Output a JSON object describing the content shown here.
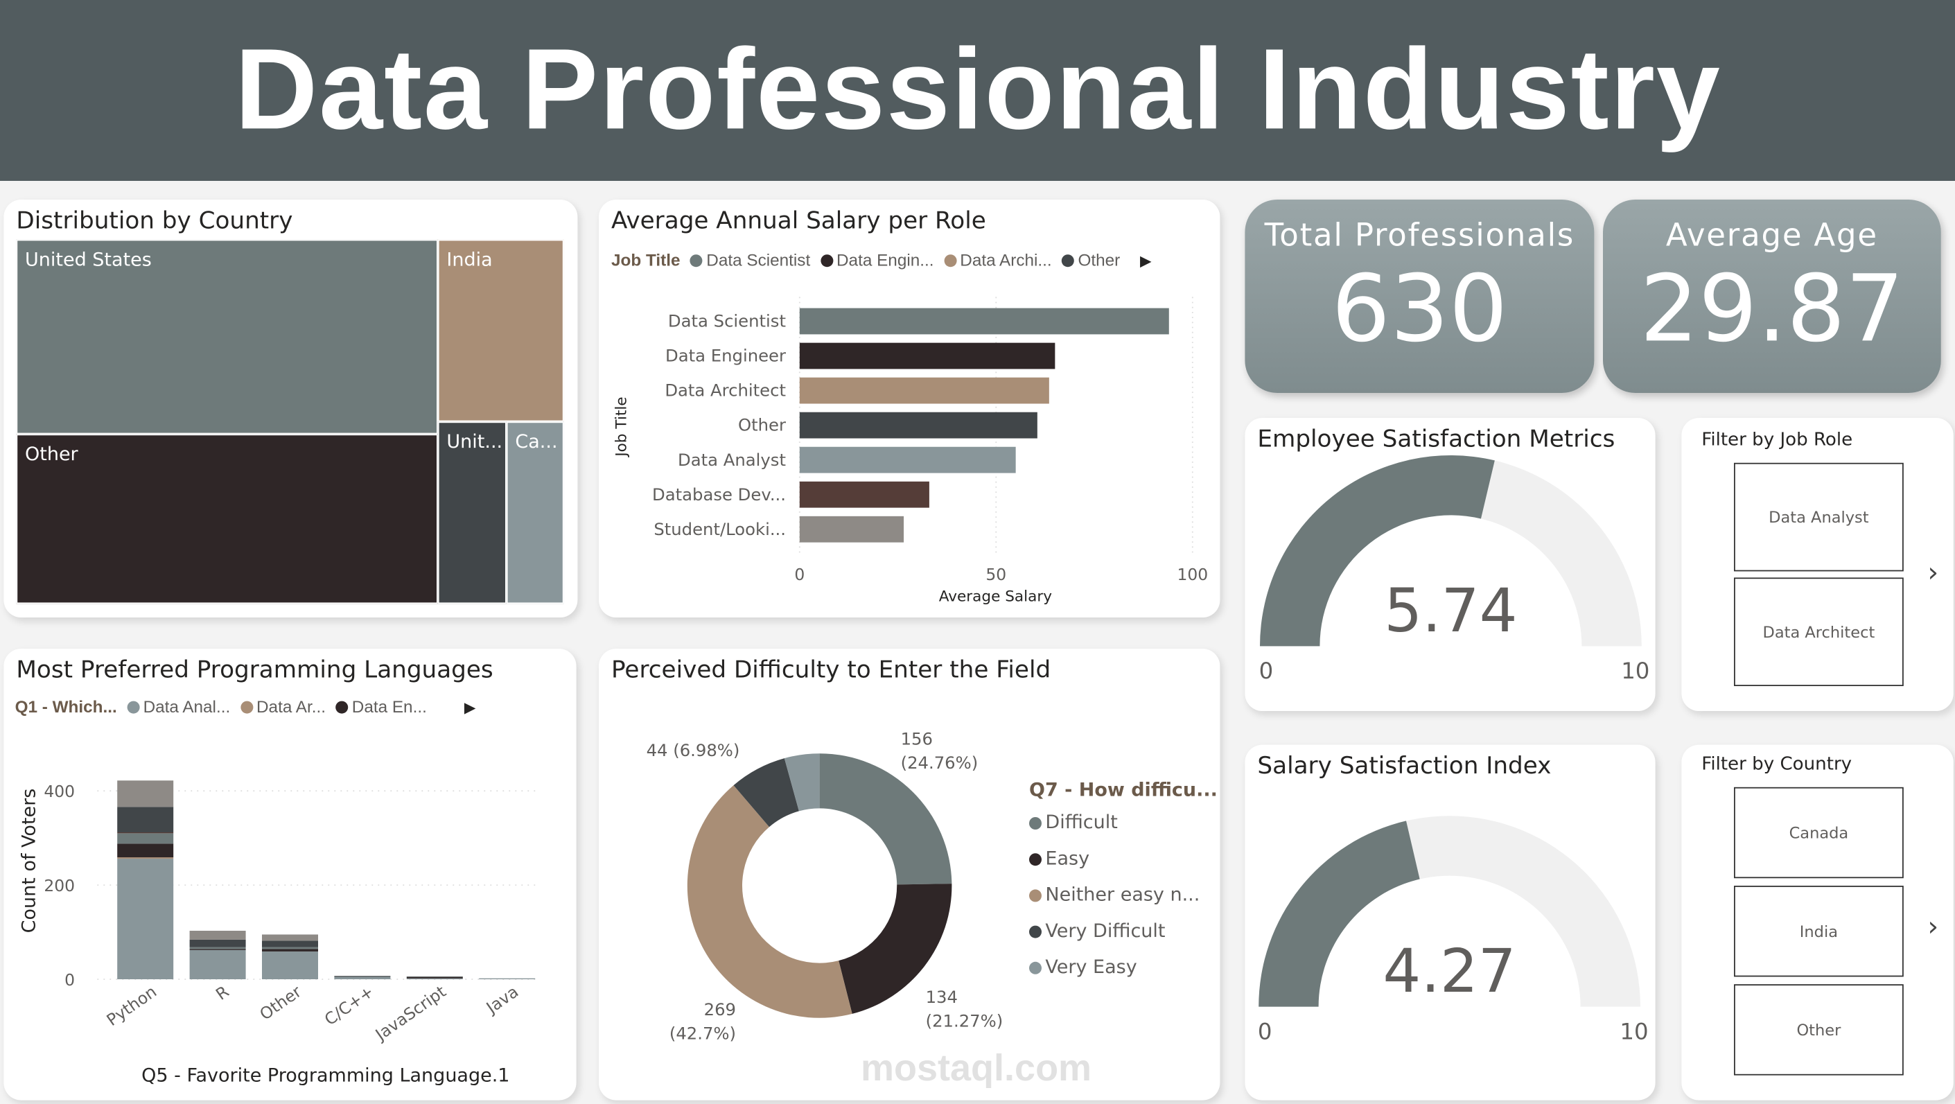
{
  "title": "Data Professional Industry",
  "colors": {
    "header": "#525c5f",
    "slate": "#6e7a7a",
    "dark_brown": "#2f2627",
    "tan": "#a98e76",
    "dark_slate": "#414649",
    "gray_blue": "#89969a",
    "brown": "#553d38",
    "gray": "#8e8a86",
    "gauge_track": "#f0f0f0"
  },
  "country": {
    "title": "Distribution by Country",
    "cells": [
      {
        "label": "United States",
        "color": "#6e7a7a"
      },
      {
        "label": "India",
        "color": "#a98e76"
      },
      {
        "label": "Other",
        "color": "#2f2627"
      },
      {
        "label": "Unit...",
        "color": "#414649"
      },
      {
        "label": "Ca...",
        "color": "#89969a"
      }
    ]
  },
  "salary": {
    "title": "Average Annual Salary per Role",
    "legend_title": "Job Title",
    "legend": [
      {
        "label": "Data Scientist",
        "color": "#6e7a7a"
      },
      {
        "label": "Data Engin...",
        "color": "#2f2627"
      },
      {
        "label": "Data Archi...",
        "color": "#a98e76"
      },
      {
        "label": "Other",
        "color": "#414649"
      }
    ]
  },
  "kpis": [
    {
      "label": "Total Professionals",
      "value": "630"
    },
    {
      "label": "Average Age",
      "value": "29.87"
    }
  ],
  "employee_satisfaction": {
    "title": "Employee Satisfaction Metrics",
    "value": "5.74",
    "min": "0",
    "max": "10"
  },
  "salary_satisfaction": {
    "title": "Salary Satisfaction Index",
    "value": "4.27",
    "min": "0",
    "max": "10"
  },
  "filter_job": {
    "title": "Filter by Job Role",
    "items": [
      "Data Analyst",
      "Data Architect"
    ]
  },
  "filter_country": {
    "title": "Filter by Country",
    "items": [
      "Canada",
      "India",
      "Other"
    ]
  },
  "languages": {
    "title": "Most Preferred Programming Languages",
    "legend_title": "Q1 - Which...",
    "legend": [
      {
        "label": "Data Anal...",
        "color": "#89969a"
      },
      {
        "label": "Data Ar...",
        "color": "#a98e76"
      },
      {
        "label": "Data En...",
        "color": "#2f2627"
      }
    ]
  },
  "difficulty": {
    "title": "Perceived Difficulty to Enter the Field",
    "legend_title": "Q7 - How difficu...",
    "legend": [
      {
        "label": "Difficult",
        "color": "#6e7a7a"
      },
      {
        "label": "Easy",
        "color": "#2f2627"
      },
      {
        "label": "Neither easy n...",
        "color": "#a98e76"
      },
      {
        "label": "Very Difficult",
        "color": "#414649"
      },
      {
        "label": "Very Easy",
        "color": "#89969a"
      }
    ]
  },
  "watermark": "mostaql.com",
  "chart_data": [
    {
      "type": "bar",
      "orientation": "horizontal",
      "title": "Average Annual Salary per Role",
      "xlabel": "Average Salary",
      "ylabel": "Job Title",
      "xlim": [
        0,
        100
      ],
      "xticks": [
        "0",
        "50",
        "100"
      ],
      "categories": [
        "Data Scientist",
        "Data Engineer",
        "Data Architect",
        "Other",
        "Data Analyst",
        "Database Dev...",
        "Student/Looki..."
      ],
      "values": [
        94,
        65,
        63.5,
        60.5,
        55,
        33,
        26.5
      ],
      "colors": [
        "#6e7a7a",
        "#2f2627",
        "#a98e76",
        "#414649",
        "#89969a",
        "#553d38",
        "#8e8a86"
      ]
    },
    {
      "type": "bar",
      "stacked": true,
      "title": "Most Preferred Programming Languages",
      "xlabel": "Q5 - Favorite Programming Language.1",
      "ylabel": "Count of Voters",
      "ylim": [
        0,
        420
      ],
      "yticks": [
        "0",
        "200",
        "400"
      ],
      "categories": [
        "Python",
        "R",
        "Other",
        "C/C++",
        "JavaScript",
        "Java"
      ],
      "series": [
        {
          "name": "Data Anal...",
          "color": "#89969a",
          "values": [
            256,
            62,
            59,
            5,
            2,
            2
          ]
        },
        {
          "name": "Data Ar...",
          "color": "#a98e76",
          "values": [
            3,
            0,
            0,
            0,
            0,
            0
          ]
        },
        {
          "name": "Data En...",
          "color": "#2f2627",
          "values": [
            29,
            2,
            5,
            0,
            3,
            0
          ]
        },
        {
          "color": "#6e7a7a",
          "values": [
            22,
            4,
            4,
            0,
            1,
            0
          ]
        },
        {
          "color": "#553d38",
          "values": [
            2,
            0,
            0,
            0,
            0,
            0
          ]
        },
        {
          "color": "#414649",
          "values": [
            54,
            16,
            14,
            2,
            0,
            0
          ]
        },
        {
          "color": "#8e8a86",
          "values": [
            56,
            19,
            13,
            0,
            0,
            0
          ]
        }
      ]
    },
    {
      "type": "pie",
      "donut": true,
      "title": "Perceived Difficulty to Enter the Field",
      "categories": [
        "Difficult",
        "Easy",
        "Neither easy n...",
        "Very Difficult",
        "Very Easy"
      ],
      "values": [
        156,
        134,
        269,
        44,
        27
      ],
      "colors": [
        "#6e7a7a",
        "#2f2627",
        "#a98e76",
        "#414649",
        "#89969a"
      ],
      "data_labels": [
        "156\n(24.76%)",
        "134\n(21.27%)",
        "269\n(42.7%)",
        "44 (6.98%)",
        ""
      ]
    },
    {
      "type": "gauge",
      "title": "Employee Satisfaction Metrics",
      "value": 5.74,
      "min": 0,
      "max": 10
    },
    {
      "type": "gauge",
      "title": "Salary Satisfaction Index",
      "value": 4.27,
      "min": 0,
      "max": 10
    }
  ]
}
